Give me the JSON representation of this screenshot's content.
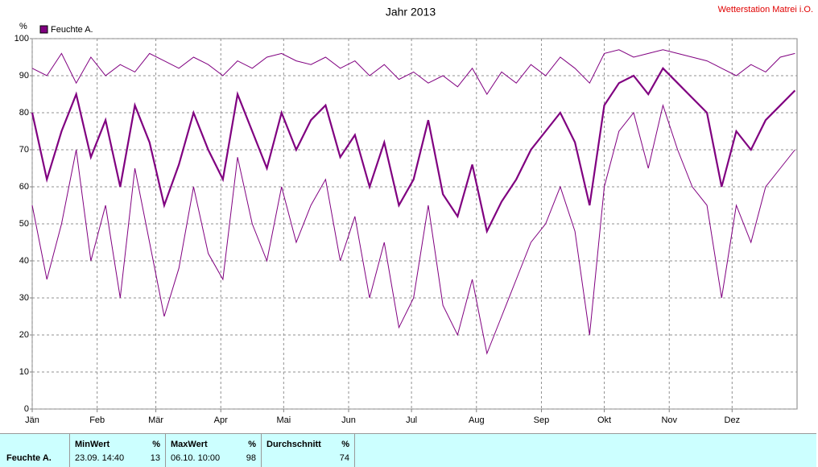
{
  "chart_data": {
    "type": "line",
    "title": "Jahr 2013",
    "station": "Wetterstation Matrei i.O.",
    "ylabel": "%",
    "x": [
      1,
      8,
      15,
      22,
      29,
      36,
      43,
      50,
      57,
      64,
      71,
      78,
      85,
      92,
      99,
      106,
      113,
      120,
      127,
      134,
      141,
      148,
      155,
      162,
      169,
      176,
      183,
      190,
      197,
      204,
      211,
      218,
      225,
      232,
      239,
      246,
      253,
      260,
      267,
      274,
      281,
      288,
      295,
      302,
      309,
      316,
      323,
      330,
      337,
      344,
      351,
      358,
      365
    ],
    "series": [
      {
        "name": "Feuchte A.",
        "color": "#800080",
        "values": [
          80,
          62,
          75,
          85,
          68,
          78,
          60,
          82,
          72,
          55,
          66,
          80,
          70,
          62,
          85,
          75,
          65,
          80,
          70,
          78,
          82,
          68,
          74,
          60,
          72,
          55,
          62,
          78,
          58,
          52,
          66,
          48,
          56,
          62,
          70,
          75,
          80,
          72,
          55,
          82,
          88,
          90,
          85,
          92,
          88,
          84,
          80,
          60,
          75,
          70,
          78,
          82,
          86
        ],
        "max": [
          92,
          90,
          96,
          88,
          95,
          90,
          93,
          91,
          96,
          94,
          92,
          95,
          93,
          90,
          94,
          92,
          95,
          96,
          94,
          93,
          95,
          92,
          94,
          90,
          93,
          89,
          91,
          88,
          90,
          87,
          92,
          85,
          91,
          88,
          93,
          90,
          95,
          92,
          88,
          96,
          97,
          95,
          96,
          97,
          96,
          95,
          94,
          92,
          90,
          93,
          91,
          95,
          96
        ],
        "min": [
          55,
          35,
          50,
          70,
          40,
          55,
          30,
          65,
          45,
          25,
          38,
          60,
          42,
          35,
          68,
          50,
          40,
          60,
          45,
          55,
          62,
          40,
          52,
          30,
          45,
          22,
          30,
          55,
          28,
          20,
          35,
          15,
          25,
          35,
          45,
          50,
          60,
          48,
          20,
          60,
          75,
          80,
          65,
          82,
          70,
          60,
          55,
          30,
          55,
          45,
          60,
          65,
          70
        ]
      }
    ],
    "xlim": [
      1,
      366
    ],
    "xticks": [
      {
        "value": 1,
        "label": "Jän"
      },
      {
        "value": 32,
        "label": "Feb"
      },
      {
        "value": 60,
        "label": "Mär"
      },
      {
        "value": 91,
        "label": "Apr"
      },
      {
        "value": 121,
        "label": "Mai"
      },
      {
        "value": 152,
        "label": "Jun"
      },
      {
        "value": 182,
        "label": "Jul"
      },
      {
        "value": 213,
        "label": "Aug"
      },
      {
        "value": 244,
        "label": "Sep"
      },
      {
        "value": 274,
        "label": "Okt"
      },
      {
        "value": 305,
        "label": "Nov"
      },
      {
        "value": 335,
        "label": "Dez"
      }
    ],
    "ylim": [
      0,
      100
    ],
    "yticks": [
      0,
      10,
      20,
      30,
      40,
      50,
      60,
      70,
      80,
      90,
      100
    ],
    "grid": true,
    "legend": "top-left"
  },
  "stats": {
    "label": "Feuchte A.",
    "unit": "%",
    "min": {
      "title": "MinWert",
      "date": "23.09.  14:40",
      "value": "13"
    },
    "max": {
      "title": "MaxWert",
      "date": "06.10.  10:00",
      "value": "98"
    },
    "avg": {
      "title": "Durchschnitt",
      "value": "74"
    }
  }
}
